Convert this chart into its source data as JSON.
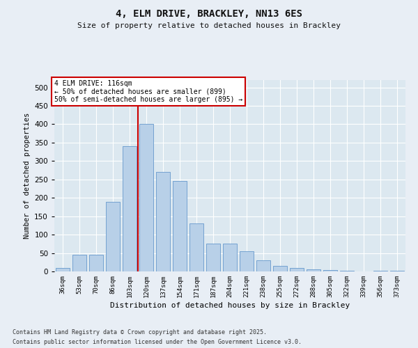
{
  "title1": "4, ELM DRIVE, BRACKLEY, NN13 6ES",
  "title2": "Size of property relative to detached houses in Brackley",
  "xlabel": "Distribution of detached houses by size in Brackley",
  "ylabel": "Number of detached properties",
  "categories": [
    "36sqm",
    "53sqm",
    "70sqm",
    "86sqm",
    "103sqm",
    "120sqm",
    "137sqm",
    "154sqm",
    "171sqm",
    "187sqm",
    "204sqm",
    "221sqm",
    "238sqm",
    "255sqm",
    "272sqm",
    "288sqm",
    "305sqm",
    "322sqm",
    "339sqm",
    "356sqm",
    "373sqm"
  ],
  "values": [
    10,
    45,
    45,
    190,
    340,
    400,
    270,
    245,
    130,
    75,
    75,
    55,
    30,
    15,
    10,
    5,
    3,
    2,
    0,
    1,
    2
  ],
  "bar_color": "#b8d0e8",
  "bar_edge_color": "#6699cc",
  "vline_color": "#cc0000",
  "annotation_title": "4 ELM DRIVE: 116sqm",
  "annotation_line1": "← 50% of detached houses are smaller (899)",
  "annotation_line2": "50% of semi-detached houses are larger (895) →",
  "annotation_box_color": "#ffffff",
  "annotation_box_edge": "#cc0000",
  "background_color": "#e8eef5",
  "plot_bg_color": "#dce8f0",
  "footer1": "Contains HM Land Registry data © Crown copyright and database right 2025.",
  "footer2": "Contains public sector information licensed under the Open Government Licence v3.0.",
  "ylim": [
    0,
    520
  ],
  "yticks": [
    0,
    50,
    100,
    150,
    200,
    250,
    300,
    350,
    400,
    450,
    500
  ]
}
